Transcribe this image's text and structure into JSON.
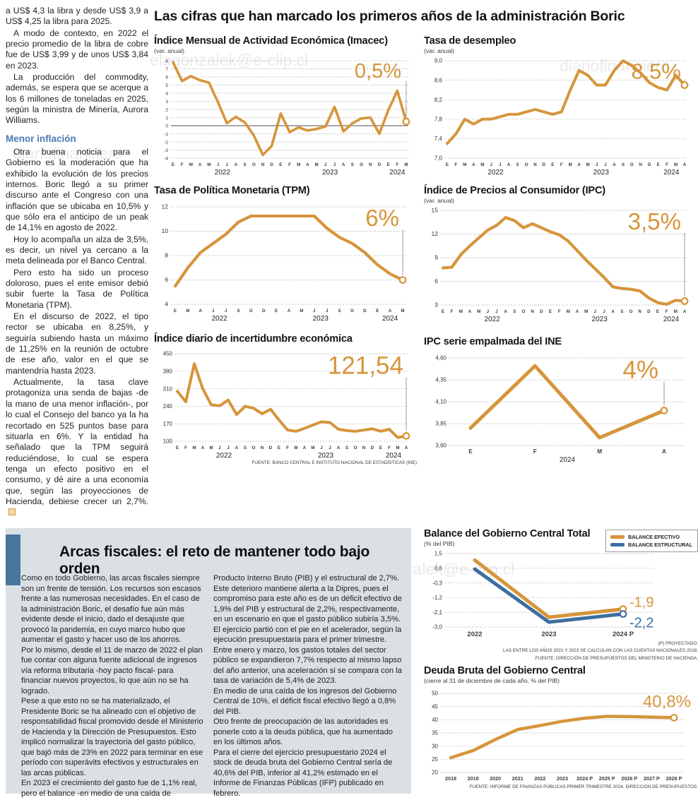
{
  "colors": {
    "orange": "#D6953B",
    "blue": "#3C6F9F",
    "subhead": "#4A7AB5",
    "accent_bar": "#49749E",
    "graybox": "#DBE0E4"
  },
  "watermarks": {
    "wm1": "elagonzalek@e-clip.cl",
    "wm2": "diariofinanciero",
    "wm3": "diariofinanciero",
    "wm4": "diariofinanciero#lagonzalek@e-clip.cl"
  },
  "main_title": "Las cifras que han marcado los primeros años de la administración Boric",
  "article": {
    "subhead": "Menor inflación",
    "paragraphs_top": [
      "a US$ 4,3 la libra y desde US$ 3,9 a US$ 4,25 la libra para 2025.",
      "A modo de contexto, en 2022 el precio promedio de la libra de cobre fue de US$ 3,99 y de unos US$ 3,84 en 2023.",
      "La producción del commodity, además, se espera que se acerque a los 6 millones de toneladas en 2025, según la ministra de Minería, Aurora Williams."
    ],
    "paragraphs_bottom": [
      "Otra buena noticia para el Gobierno es la moderación que ha exhibido la evolución de los precios internos. Boric llegó a su primer discurso ante el Congreso con una inflación que se ubicaba en 10,5% y que sólo era el anticipo de un peak de 14,1% en agosto de 2022.",
      "Hoy lo acompaña un alza de 3,5%, es decir, un nivel ya cercano a la meta delineada por el Banco Central.",
      "Pero esto ha sido un proceso doloroso, pues el ente emisor debió subir fuerte la Tasa de Política Monetaria (TPM).",
      "En el discurso de 2022, el tipo rector se ubicaba en 8,25%, y seguiría subiendo hasta un máximo de 11,25% en la reunión de octubre de ese año, valor en el que se mantendría hasta 2023.",
      "Actualmente, la tasa clave protagoniza una senda de bajas -de la mano de una menor inflación-, por lo cual el Consejo del banco ya la ha recortado en 525 puntos base para situarla en 6%. Y la entidad ha señalado que la TPM seguirá reduciéndose, lo cual se espera tenga un efecto positivo en el consumo, y dé aire a una economía que, según las proyecciones de Hacienda, debiese crecer un 2,7%."
    ]
  },
  "fiscal": {
    "headline": "Arcas fiscales: el reto de mantener todo bajo orden",
    "col1": [
      "Como en todo Gobierno, las arcas fiscales siempre son un frente de tensión. Los recursos son escasos frente a las numerosas necesidades. En el caso de la administración Boric, el desafío fue aún más evidente desde el inicio, dado el desajuste que provocó la pandemia, en cuyo marco hubo que aumentar el gasto y hacer uso de los ahorros.",
      "Por lo mismo, desde el 11 de marzo de 2022 el plan fue contar con alguna fuente adicional de ingresos vía reforma tributaria -hoy pacto fiscal- para financiar nuevos proyectos, lo que aún no se ha logrado.",
      "Pese a que esto no se ha materializado, el Presidente Boric se ha alineado con el objetivo de responsabilidad fiscal promovido desde el Ministerio de Hacienda y la Dirección de Presupuestos. Esto implicó normalizar la trayectoria del gasto público, que bajó más de 23% en 2022 para terminar en ese período con superávits efectivos y estructurales en las arcas públicas.",
      "En 2023 el crecimiento del gasto fue de 1,1% real, pero el balance -en medio de una caída de ingresos-  pasó a rojo. El déficit efectivo fue de 2,4% del"
    ],
    "col2": [
      "Producto Interno Bruto (PIB) y el estructural de 2,7%. Este deterioro mantiene alerta a la Dipres, pues el compromiso para este año es de un déficit efectivo de 1,9% del PIB y estructural de 2,2%, respectivamente, en un escenario en que el gasto público subiría 3,5%.",
      "El ejercicio partió con el pie en el acelerador, según la ejecución presupuestaria para el primer trimestre. Entre enero y marzo, los gastos totales del sector público se expandieron 7,7% respecto al mismo lapso del año anterior, una aceleración si se compara con la tasa de variación de 5,4% de 2023.",
      "En medio de una caída de los ingresos del Gobierno Central de 10%, el déficit fiscal efectivo llegó a 0,8% del PIB.",
      "Otro frente de preocupación de las autoridades es ponerle coto a la deuda pública, que ha aumentado en los últimos años.",
      "Para el cierre del ejercicio presupuestario 2024 el stock de deuda bruta del Gobierno Central sería de 40,6% del PIB, inferior al 41,2% estimado en el Informe de Finanzas Públicas (IFP) publicado en febrero."
    ]
  },
  "chart_data": {
    "imacec": {
      "type": "line",
      "title": "Índice Mensual de Actividad Económica (Imacec)",
      "subtitle": "(var. anual)",
      "x_labels": [
        "E",
        "F",
        "M",
        "A",
        "M",
        "J",
        "J",
        "A",
        "S",
        "O",
        "N",
        "D",
        "E",
        "F",
        "M",
        "A",
        "M",
        "J",
        "J",
        "A",
        "S",
        "O",
        "N",
        "D",
        "E",
        "F",
        "M"
      ],
      "year_groups": [
        {
          "label": "2022",
          "from": 0,
          "to": 11
        },
        {
          "label": "2023",
          "from": 12,
          "to": 23
        },
        {
          "label": "2024",
          "from": 24,
          "to": 26
        }
      ],
      "y_ticks": [
        [
          8,
          "8"
        ],
        [
          7,
          "7"
        ],
        [
          6,
          "6"
        ],
        [
          5,
          "5"
        ],
        [
          4,
          "4"
        ],
        [
          3,
          "3"
        ],
        [
          2,
          "2"
        ],
        [
          1,
          "1"
        ],
        [
          0,
          "0"
        ],
        [
          -1,
          "-1"
        ],
        [
          -2,
          "-2"
        ],
        [
          -3,
          "-3"
        ],
        [
          -4,
          "-4"
        ]
      ],
      "ylim": [
        -4,
        8
      ],
      "ytick_size": 6.5,
      "zero_line": 0,
      "lw": 3.6,
      "series": [
        {
          "name": "Imacec",
          "color": "orange",
          "values": [
            7.8,
            5.5,
            6.1,
            5.6,
            5.3,
            2.9,
            0.3,
            1.1,
            0.4,
            -1.2,
            -3.6,
            -2.5,
            1.5,
            -0.8,
            -0.2,
            -0.6,
            -0.4,
            -0.1,
            2.3,
            -0.7,
            0.3,
            0.9,
            1.0,
            -1.0,
            1.9,
            4.3,
            0.5
          ]
        }
      ],
      "callout": {
        "text": "0,5%",
        "size": 29,
        "line": true,
        "dx": -7
      }
    },
    "desempleo": {
      "type": "line",
      "title": "Tasa de desempleo",
      "subtitle": "(var. anual)",
      "x_labels": [
        "E",
        "F",
        "M",
        "A",
        "M",
        "J",
        "J",
        "A",
        "S",
        "O",
        "N",
        "D",
        "E",
        "F",
        "M",
        "A",
        "M",
        "J",
        "J",
        "A",
        "S",
        "O",
        "N",
        "D",
        "E",
        "F",
        "M",
        "A"
      ],
      "year_groups": [
        {
          "label": "2022",
          "from": 0,
          "to": 11
        },
        {
          "label": "2023",
          "from": 12,
          "to": 23
        },
        {
          "label": "2024",
          "from": 24,
          "to": 27
        }
      ],
      "y_ticks": [
        [
          9.0,
          "9,0"
        ],
        [
          8.6,
          "8,6"
        ],
        [
          8.2,
          "8,2"
        ],
        [
          7.8,
          "7,8"
        ],
        [
          7.4,
          "7,4"
        ],
        [
          7.0,
          "7,0"
        ]
      ],
      "ylim": [
        7.0,
        9.0
      ],
      "ytick_size": 8,
      "lw": 4,
      "series": [
        {
          "name": "Tasa de desempleo",
          "color": "orange",
          "values": [
            7.3,
            7.5,
            7.8,
            7.7,
            7.8,
            7.8,
            7.85,
            7.9,
            7.9,
            7.95,
            8.0,
            7.95,
            7.9,
            7.95,
            8.4,
            8.8,
            8.7,
            8.5,
            8.5,
            8.8,
            9.0,
            8.9,
            8.75,
            8.55,
            8.45,
            8.4,
            8.7,
            8.5
          ]
        }
      ],
      "callout": {
        "text": "8,5%",
        "size": 31,
        "line": true,
        "dx": -5
      }
    },
    "tpm": {
      "type": "line",
      "title": "Tasa de Política Monetaria (TPM)",
      "x_labels": [
        "E",
        "M",
        "A",
        "J",
        "J",
        "S",
        "O",
        "D",
        "E",
        "A",
        "M",
        "J",
        "J",
        "S",
        "O",
        "D",
        "E",
        "A",
        "M"
      ],
      "year_groups": [
        {
          "label": "2022",
          "from": 0,
          "to": 7
        },
        {
          "label": "2023",
          "from": 8,
          "to": 15
        },
        {
          "label": "2024",
          "from": 16,
          "to": 18
        }
      ],
      "y_ticks": [
        [
          12,
          "12"
        ],
        [
          10,
          "10"
        ],
        [
          8,
          "8"
        ],
        [
          6,
          "6"
        ],
        [
          4,
          "4"
        ]
      ],
      "ylim": [
        4,
        12
      ],
      "ytick_size": 8.5,
      "lw": 4.2,
      "series": [
        {
          "name": "TPM",
          "color": "orange",
          "values": [
            5.5,
            7.0,
            8.25,
            9.0,
            9.75,
            10.75,
            11.25,
            11.25,
            11.25,
            11.25,
            11.25,
            11.25,
            10.25,
            9.5,
            9.0,
            8.25,
            7.25,
            6.5,
            6.0
          ]
        }
      ],
      "callout": {
        "text": "6%",
        "size": 33,
        "line": true,
        "dx": -5
      }
    },
    "ipc": {
      "type": "line",
      "title": "Índice de Precios al Consumidor (IPC)",
      "subtitle": "(var. anual)",
      "x_labels": [
        "E",
        "F",
        "M",
        "A",
        "M",
        "J",
        "J",
        "A",
        "S",
        "O",
        "N",
        "D",
        "E",
        "F",
        "M",
        "A",
        "M",
        "J",
        "J",
        "A",
        "S",
        "O",
        "N",
        "D",
        "E",
        "F",
        "M",
        "A"
      ],
      "year_groups": [
        {
          "label": "2022",
          "from": 0,
          "to": 11
        },
        {
          "label": "2023",
          "from": 12,
          "to": 23
        },
        {
          "label": "2024",
          "from": 24,
          "to": 27
        }
      ],
      "y_ticks": [
        [
          15,
          "15"
        ],
        [
          12,
          "12"
        ],
        [
          9,
          "9"
        ],
        [
          6,
          "6"
        ],
        [
          3,
          "3"
        ]
      ],
      "ylim": [
        3,
        15
      ],
      "ytick_size": 8.5,
      "lw": 4.2,
      "series": [
        {
          "name": "IPC",
          "color": "orange",
          "values": [
            7.7,
            7.8,
            9.4,
            10.5,
            11.5,
            12.5,
            13.1,
            14.1,
            13.7,
            12.8,
            13.3,
            12.8,
            12.3,
            11.9,
            11.1,
            9.9,
            8.7,
            7.6,
            6.5,
            5.3,
            5.1,
            5.0,
            4.8,
            3.9,
            3.3,
            3.1,
            3.6,
            3.5
          ]
        }
      ],
      "callout": {
        "text": "3,5%",
        "size": 33,
        "line": true,
        "dx": -5
      }
    },
    "incertidumbre": {
      "type": "line",
      "title": "Índice diario de incertidumbre económica",
      "x_labels": [
        "E",
        "F",
        "M",
        "A",
        "M",
        "J",
        "J",
        "A",
        "S",
        "O",
        "N",
        "D",
        "E",
        "F",
        "M",
        "A",
        "M",
        "J",
        "J",
        "A",
        "S",
        "O",
        "N",
        "D",
        "E",
        "F",
        "M",
        "A"
      ],
      "year_groups": [
        {
          "label": "2022",
          "from": 0,
          "to": 11
        },
        {
          "label": "2023",
          "from": 12,
          "to": 23
        },
        {
          "label": "2024",
          "from": 24,
          "to": 27
        }
      ],
      "y_ticks": [
        [
          450,
          "450"
        ],
        [
          380,
          "380"
        ],
        [
          310,
          "310"
        ],
        [
          240,
          "240"
        ],
        [
          170,
          "170"
        ],
        [
          100,
          "100"
        ]
      ],
      "ylim": [
        100,
        450
      ],
      "ytick_size": 8,
      "lw": 4,
      "series": [
        {
          "name": "Incertidumbre económica",
          "color": "orange",
          "values": [
            300,
            258,
            410,
            310,
            246,
            242,
            265,
            207,
            240,
            232,
            210,
            228,
            185,
            145,
            140,
            152,
            165,
            178,
            175,
            148,
            143,
            140,
            145,
            150,
            140,
            148,
            115,
            121.54
          ]
        }
      ],
      "callout": {
        "text": "121,54",
        "size": 35,
        "line": true,
        "dx": -4
      },
      "source": "FUENTE: BANCO CENTRAL E INSTITUTO NACIONAL DE ESTADÍSTICAS (INE)"
    },
    "ipc_empalmada": {
      "type": "line",
      "title": "IPC serie empalmada del INE",
      "x_labels": [
        "E",
        "F",
        "M",
        "A"
      ],
      "x_label_size": 8,
      "year_groups": [
        {
          "label": "2024",
          "from": 0,
          "to": 3
        }
      ],
      "y_ticks": [
        [
          4.6,
          "4,60"
        ],
        [
          4.35,
          "4,35"
        ],
        [
          4.1,
          "4,10"
        ],
        [
          3.85,
          "3,85"
        ],
        [
          3.6,
          "3,60"
        ]
      ],
      "ylim": [
        3.6,
        4.6
      ],
      "ytick_size": 8,
      "lw": 5,
      "series": [
        {
          "name": "IPC empalmado",
          "color": "orange",
          "values": [
            3.8,
            4.51,
            3.69,
            4.0
          ]
        }
      ],
      "callout": {
        "text": "4%",
        "size": 35,
        "line": true,
        "dx": -8
      }
    },
    "balance": {
      "type": "line",
      "title": "Balance del Gobierno Central Total",
      "subtitle": "(% del PIB)",
      "legend": [
        {
          "label": "BALANCE EFECTIVO",
          "color": "orange"
        },
        {
          "label": "BALANCE ESTRUCTURAL",
          "color": "blue"
        }
      ],
      "x_labels": [
        "2022",
        "2023",
        "2024 P"
      ],
      "x_label_size": 9.5,
      "y_ticks": [
        [
          1.5,
          "1,5"
        ],
        [
          0.6,
          "0,6"
        ],
        [
          -0.3,
          "-0,3"
        ],
        [
          -1.2,
          "-1,2"
        ],
        [
          -2.1,
          "-2,1"
        ],
        [
          -3.0,
          "-3,0"
        ]
      ],
      "ylim": [
        -3.0,
        1.5
      ],
      "ytick_size": 8,
      "lw": 5,
      "series": [
        {
          "name": "Balance efectivo",
          "color": "orange",
          "values": [
            1.1,
            -2.4,
            -1.9
          ]
        },
        {
          "name": "Balance estructural",
          "color": "blue",
          "values": [
            0.55,
            -2.7,
            -2.2
          ]
        }
      ],
      "end_labels": [
        {
          "text": "-1,9",
          "color": "orange",
          "dy": -3
        },
        {
          "text": "-2,2",
          "color": "blue",
          "dy": 19
        }
      ],
      "footnotes": [
        "(P) PROYECTADO.",
        "LAS ENTRE LOS AÑOS 2021 Y 2023 SE CALCULAN  CON LAS CUENTAS NACIONALES 2018.",
        "FUENTE: DIRECCIÓN DE PRESUPUESTOS DEL MINISTERIO DE HACIENDA."
      ]
    },
    "deuda": {
      "type": "line",
      "title": "Deuda Bruta del Gobierno Central",
      "subtitle": "(cierre al 31 de diciembre de cada año, % del PIB)",
      "x_labels": [
        "2018",
        "2019",
        "2020",
        "2021",
        "2022",
        "2023",
        "2024 P",
        "2025 P",
        "2026 P",
        "2027 P",
        "2028 P"
      ],
      "x_label_size": 7.2,
      "y_ticks": [
        [
          50,
          "50"
        ],
        [
          45,
          "45"
        ],
        [
          40,
          "40"
        ],
        [
          35,
          "35"
        ],
        [
          30,
          "30"
        ],
        [
          25,
          "25"
        ],
        [
          20,
          "20"
        ]
      ],
      "ylim": [
        20,
        50
      ],
      "ytick_size": 8,
      "lw": 4.5,
      "series": [
        {
          "name": "Deuda bruta",
          "color": "orange",
          "values": [
            25.6,
            28.3,
            32.5,
            36.3,
            37.8,
            39.4,
            40.6,
            41.3,
            41.2,
            41.0,
            40.8
          ]
        }
      ],
      "callout": {
        "text": "40,8%",
        "size": 24,
        "line": false,
        "dx": 24
      },
      "source": "FUENTE: INFORME DE FINANZAS PÚBLICAS PRIMER TRIMESTRE 2024, DIRECCIÓN DE PRESUPUESTOS."
    }
  }
}
